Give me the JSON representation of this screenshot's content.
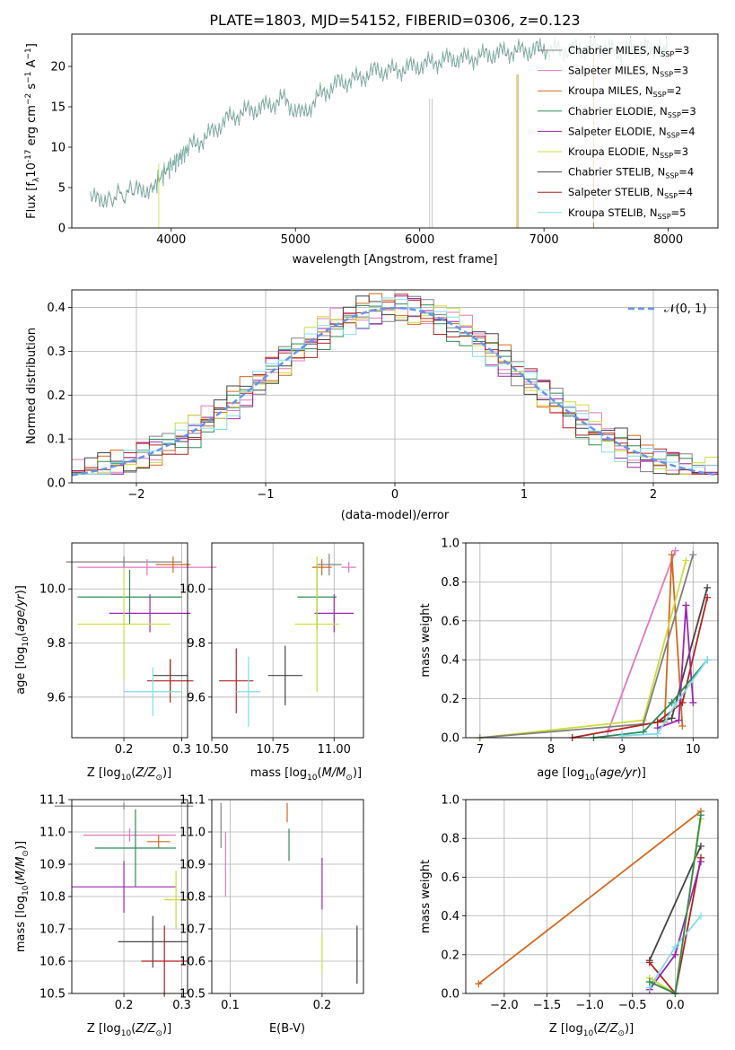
{
  "figure": {
    "title": "PLATE=1803, MJD=54152, FIBERID=0306, z=0.123"
  },
  "legend": {
    "entries": [
      {
        "label": "Chabrier MILES, N",
        "sub": "SSP",
        "suffix": "=3",
        "color": "#808080"
      },
      {
        "label": "Salpeter MILES, N",
        "sub": "SSP",
        "suffix": "=3",
        "color": "#e377c2"
      },
      {
        "label": "Kroupa MILES, N",
        "sub": "SSP",
        "suffix": "=2",
        "color": "#d2691e"
      },
      {
        "label": "Chabrier ELODIE, N",
        "sub": "SSP",
        "suffix": "=3",
        "color": "#2e8b57"
      },
      {
        "label": "Salpeter ELODIE, N",
        "sub": "SSP",
        "suffix": "=4",
        "color": "#9c27b0"
      },
      {
        "label": "Kroupa ELODIE, N",
        "sub": "SSP",
        "suffix": "=3",
        "color": "#cddc39"
      },
      {
        "label": "Chabrier STELIB, N",
        "sub": "SSP",
        "suffix": "=4",
        "color": "#444444"
      },
      {
        "label": "Salpeter STELIB, N",
        "sub": "SSP",
        "suffix": "=4",
        "color": "#b22222"
      },
      {
        "label": "Kroupa STELIB, N",
        "sub": "SSP",
        "suffix": "=5",
        "color": "#80deea"
      }
    ],
    "normal_label": "𝒩(0, 1)",
    "normal_color": "#6495ed"
  },
  "chart_data": [
    {
      "id": "spectrum",
      "type": "line",
      "xlabel": "wavelength [Angstrom, rest frame]",
      "ylabel": "Flux [f",
      "ylabel_rest": "10",
      "ylabel_exp": "-17",
      "ylabel_units": " erg cm",
      "xlim": [
        3200,
        8400
      ],
      "ylim": [
        0,
        24
      ],
      "xticks": [
        "4000",
        "5000",
        "6000",
        "7000",
        "8000"
      ],
      "yticks": [
        "0",
        "5",
        "10",
        "15",
        "20"
      ],
      "grid": false,
      "series": [
        {
          "name": "observed",
          "x": [
            3350,
            3500,
            3700,
            3850,
            3950,
            4050,
            4150,
            4300,
            4450,
            4600,
            4750,
            4900,
            5050,
            5200,
            5350,
            5500,
            5650,
            5800,
            5950,
            6100,
            6250,
            6400,
            6550,
            6700,
            6850,
            7000,
            7150,
            7300,
            7450,
            7600,
            7750,
            7900,
            8000
          ],
          "y": [
            3.5,
            3.8,
            4.5,
            5.0,
            7.0,
            8.5,
            10.0,
            11.5,
            13.5,
            14.5,
            15.0,
            16.0,
            14.0,
            16.5,
            18.0,
            18.5,
            19.5,
            19.5,
            20.0,
            20.5,
            21.0,
            21.0,
            21.5,
            21.8,
            22.0,
            22.2,
            22.0,
            22.2,
            22.5,
            21.8,
            22.5,
            22.0,
            22.2
          ]
        }
      ]
    },
    {
      "id": "residuals",
      "type": "area",
      "xlabel": "(data-model)/error",
      "ylabel": "Normed distribution",
      "xlim": [
        -2.5,
        2.5
      ],
      "ylim": [
        0,
        0.44
      ],
      "xticks": [
        "−2",
        "−1",
        "0",
        "1",
        "2"
      ],
      "yticks": [
        "0.0",
        "0.1",
        "0.2",
        "0.3",
        "0.4"
      ],
      "grid": true,
      "bin_width": 0.1,
      "series": [
        {
          "name": "normal",
          "x": [
            -2.5,
            -2.0,
            -1.5,
            -1.0,
            -0.5,
            0.0,
            0.5,
            1.0,
            1.5,
            2.0,
            2.5
          ],
          "y": [
            0.018,
            0.054,
            0.13,
            0.242,
            0.352,
            0.399,
            0.352,
            0.242,
            0.13,
            0.054,
            0.018
          ]
        }
      ]
    },
    {
      "id": "age-Z",
      "type": "scatter",
      "xlabel": "Z [log",
      "xlabel_sub": "10",
      "xlabel_rest": "(Z/Z",
      "ylabel": "age  [log",
      "ylabel_sub": "10",
      "ylabel_rest": "(age/yr)]",
      "xlim": [
        0.11,
        0.31
      ],
      "ylim": [
        9.45,
        10.17
      ],
      "xticks": [
        "0.2",
        "0.3"
      ],
      "yticks": [
        "9.6",
        "9.8",
        "10.0"
      ],
      "grid": true,
      "points": [
        {
          "x": 0.2,
          "y": 10.1,
          "xerr": 0.1,
          "yerr": 0.02
        },
        {
          "x": 0.24,
          "y": 10.08,
          "xerr": 0.12,
          "yerr": 0.03
        },
        {
          "x": 0.285,
          "y": 10.09,
          "xerr": 0.03,
          "yerr": 0.03
        },
        {
          "x": 0.21,
          "y": 9.97,
          "xerr": 0.09,
          "yerr": 0.1
        },
        {
          "x": 0.245,
          "y": 9.91,
          "xerr": 0.07,
          "yerr": 0.07
        },
        {
          "x": 0.2,
          "y": 9.87,
          "xerr": 0.08,
          "yerr": 0.2
        },
        {
          "x": 0.28,
          "y": 9.68,
          "xerr": 0.03,
          "yerr": 0.06
        },
        {
          "x": 0.28,
          "y": 9.66,
          "xerr": 0.04,
          "yerr": 0.08
        },
        {
          "x": 0.25,
          "y": 9.62,
          "xerr": 0.05,
          "yerr": 0.09
        }
      ]
    },
    {
      "id": "age-mass",
      "type": "scatter",
      "xlabel": "mass [log",
      "xlabel_sub": "10",
      "xlabel_rest": "(M/M",
      "xlim": [
        10.5,
        11.12
      ],
      "ylim": [
        9.45,
        10.17
      ],
      "xticks": [
        "10.50",
        "10.75",
        "11.00"
      ],
      "yticks": [
        "9.6",
        "9.8",
        "10.0"
      ],
      "grid": true,
      "points": [
        {
          "x": 10.98,
          "y": 10.09,
          "xerr": 0.05,
          "yerr": 0.04
        },
        {
          "x": 11.06,
          "y": 10.08,
          "xerr": 0.03,
          "yerr": 0.02
        },
        {
          "x": 10.95,
          "y": 10.08,
          "xerr": 0.04,
          "yerr": 0.03
        },
        {
          "x": 10.93,
          "y": 9.97,
          "xerr": 0.08,
          "yerr": 0.12
        },
        {
          "x": 11.0,
          "y": 9.91,
          "xerr": 0.08,
          "yerr": 0.07
        },
        {
          "x": 10.93,
          "y": 9.87,
          "xerr": 0.09,
          "yerr": 0.25
        },
        {
          "x": 10.8,
          "y": 9.68,
          "xerr": 0.07,
          "yerr": 0.11
        },
        {
          "x": 10.6,
          "y": 9.66,
          "xerr": 0.07,
          "yerr": 0.12
        },
        {
          "x": 10.65,
          "y": 9.62,
          "xerr": 0.05,
          "yerr": 0.13
        }
      ]
    },
    {
      "id": "weight-age",
      "type": "line",
      "xlabel": "age  [log",
      "xlabel_sub": "10",
      "xlabel_rest": "(age/yr)]",
      "ylabel": "mass weight",
      "xlim": [
        6.8,
        10.35
      ],
      "ylim": [
        0,
        1.0
      ],
      "xticks": [
        "7",
        "8",
        "9",
        "10"
      ],
      "yticks": [
        "0.0",
        "0.2",
        "0.4",
        "0.6",
        "0.8",
        "1.0"
      ],
      "grid": true,
      "series": [
        {
          "name": "Salpeter MILES",
          "color": "#e377c2",
          "x": [
            8.8,
            9.75
          ],
          "y": [
            0.03,
            0.96
          ]
        },
        {
          "name": "Kroupa MILES",
          "color": "#d2691e",
          "x": [
            9.6,
            9.7,
            9.85
          ],
          "y": [
            0.08,
            0.94,
            0.06
          ]
        },
        {
          "name": "Kroupa ELODIE",
          "color": "#cddc39",
          "x": [
            7.0,
            9.3,
            9.9
          ],
          "y": [
            0.0,
            0.09,
            0.91
          ]
        },
        {
          "name": "Chabrier MILES",
          "color": "#808080",
          "x": [
            7.0,
            9.3,
            10.0
          ],
          "y": [
            0.0,
            0.07,
            0.94
          ]
        },
        {
          "name": "Chabrier STELIB",
          "color": "#444444",
          "x": [
            9.5,
            9.7,
            10.2
          ],
          "y": [
            0.08,
            0.1,
            0.77
          ]
        },
        {
          "name": "Salpeter ELODIE",
          "color": "#9c27b0",
          "x": [
            9.5,
            9.8,
            9.9,
            10.0
          ],
          "y": [
            0.05,
            0.09,
            0.68,
            0.18
          ]
        },
        {
          "name": "Salpeter STELIB",
          "color": "#b22222",
          "x": [
            8.3,
            9.5,
            9.85,
            10.2
          ],
          "y": [
            0.0,
            0.08,
            0.18,
            0.72
          ]
        },
        {
          "name": "Chabrier ELODIE",
          "color": "#2e8b57",
          "x": [
            8.6,
            9.3,
            9.7,
            10.2
          ],
          "y": [
            0.0,
            0.03,
            0.18,
            0.4
          ]
        },
        {
          "name": "Kroupa STELIB",
          "color": "#80deea",
          "x": [
            9.0,
            9.5,
            9.75,
            10.2
          ],
          "y": [
            0.01,
            0.02,
            0.17,
            0.4
          ]
        }
      ]
    },
    {
      "id": "mass-Z",
      "type": "scatter",
      "xlabel": "Z [log",
      "xlabel_sub": "10",
      "xlabel_rest": "(Z/Z",
      "ylabel": "mass [log",
      "ylabel_sub": "10",
      "ylabel_rest": "(M/M",
      "xlim": [
        0.11,
        0.31
      ],
      "ylim": [
        10.5,
        11.1
      ],
      "xticks": [
        "0.2",
        "0.3"
      ],
      "yticks": [
        "10.5",
        "10.6",
        "10.7",
        "10.8",
        "10.9",
        "11.0",
        "11.1"
      ],
      "grid": true,
      "points": [
        {
          "x": 0.2,
          "y": 11.08,
          "xerr": 0.12,
          "yerr": 0.01
        },
        {
          "x": 0.21,
          "y": 10.99,
          "xerr": 0.08,
          "yerr": 0.02
        },
        {
          "x": 0.26,
          "y": 10.97,
          "xerr": 0.02,
          "yerr": 0.02
        },
        {
          "x": 0.22,
          "y": 10.95,
          "xerr": 0.07,
          "yerr": 0.12
        },
        {
          "x": 0.2,
          "y": 10.83,
          "xerr": 0.09,
          "yerr": 0.08
        },
        {
          "x": 0.29,
          "y": 10.79,
          "xerr": 0.02,
          "yerr": 0.09
        },
        {
          "x": 0.25,
          "y": 10.66,
          "xerr": 0.06,
          "yerr": 0.08
        },
        {
          "x": 0.27,
          "y": 10.6,
          "xerr": 0.04,
          "yerr": 0.11
        }
      ]
    },
    {
      "id": "mass-EBV",
      "type": "scatter",
      "xlabel": "E(B-V)",
      "xlim": [
        0.08,
        0.245
      ],
      "ylim": [
        10.5,
        11.1
      ],
      "xticks": [
        "0.1",
        "0.2"
      ],
      "yticks": [
        "10.5",
        "10.6",
        "10.7",
        "10.8",
        "10.9",
        "11.0",
        "11.1"
      ],
      "grid": true,
      "points": [
        {
          "x": 0.09,
          "y": 11.02,
          "xerr": 0.0,
          "yerr": 0.07
        },
        {
          "x": 0.095,
          "y": 10.9,
          "xerr": 0.0,
          "yerr": 0.1
        },
        {
          "x": 0.162,
          "y": 11.06,
          "xerr": 0.0,
          "yerr": 0.03
        },
        {
          "x": 0.164,
          "y": 10.96,
          "xerr": 0.0,
          "yerr": 0.05
        },
        {
          "x": 0.2,
          "y": 10.84,
          "xerr": 0.0,
          "yerr": 0.08
        },
        {
          "x": 0.2,
          "y": 10.62,
          "xerr": 0.0,
          "yerr": 0.06
        },
        {
          "x": 0.238,
          "y": 10.62,
          "xerr": 0.0,
          "yerr": 0.09
        }
      ]
    },
    {
      "id": "weight-Z",
      "type": "line",
      "xlabel": "Z [log",
      "xlabel_sub": "10",
      "xlabel_rest": "(Z/Z",
      "ylabel": "mass weight",
      "xlim": [
        -2.45,
        0.5
      ],
      "ylim": [
        0,
        1.0
      ],
      "xticks": [
        "−2.0",
        "−1.5",
        "−1.0",
        "−0.5",
        "0.0"
      ],
      "yticks": [
        "0.0",
        "0.2",
        "0.4",
        "0.6",
        "0.8",
        "1.0"
      ],
      "grid": true,
      "series": [
        {
          "name": "Kroupa MILES",
          "color": "#d2691e",
          "x": [
            -2.3,
            0.3
          ],
          "y": [
            0.05,
            0.94
          ]
        },
        {
          "name": "Chabrier STELIB",
          "color": "#444444",
          "x": [
            -0.3,
            0.3
          ],
          "y": [
            0.17,
            0.76
          ]
        },
        {
          "name": "Salpeter STELIB",
          "color": "#b22222",
          "x": [
            -0.3,
            0.0,
            0.3
          ],
          "y": [
            0.16,
            0.0,
            0.7
          ]
        },
        {
          "name": "Salpeter ELODIE",
          "color": "#9c27b0",
          "x": [
            -0.3,
            0.0,
            0.3
          ],
          "y": [
            0.02,
            0.2,
            0.68
          ]
        },
        {
          "name": "Kroupa STELIB",
          "color": "#80deea",
          "x": [
            -0.3,
            0.0,
            0.3
          ],
          "y": [
            0.03,
            0.24,
            0.4
          ]
        },
        {
          "name": "Kroupa ELODIE",
          "color": "#cddc39",
          "x": [
            -0.3,
            0.0,
            0.3
          ],
          "y": [
            0.08,
            0.0,
            0.9
          ]
        },
        {
          "name": "Chabrier ELODIE",
          "color": "#2e8b57",
          "x": [
            -0.3,
            0.0,
            0.3
          ],
          "y": [
            0.06,
            0.0,
            0.92
          ]
        }
      ]
    }
  ]
}
